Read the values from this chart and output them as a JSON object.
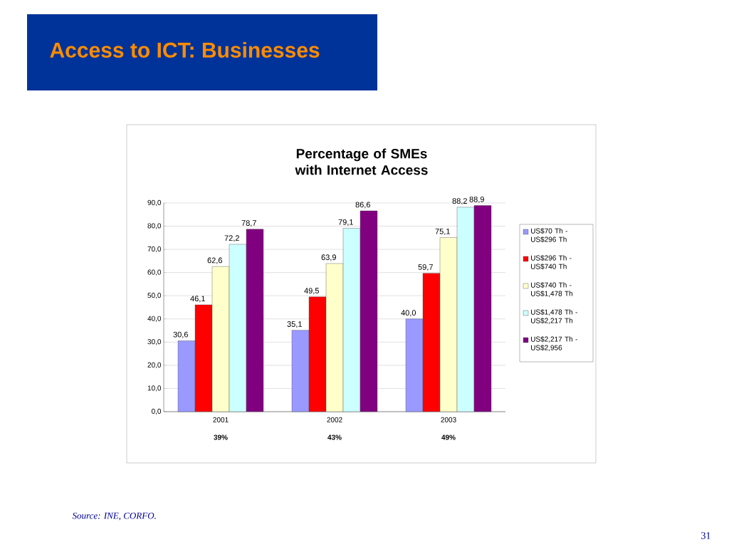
{
  "chart_data": {
    "type": "bar",
    "title": "Access to ICT: Businesses",
    "subtitle": "Percentage of SMEs with Internet Access",
    "categories": [
      "2001",
      "2002",
      "2003"
    ],
    "series": [
      {
        "name": "US$70 Th - US$296 Th",
        "color": "#9999ff",
        "values": [
          30.6,
          35.1,
          40.0
        ],
        "value_labels": [
          "30,6",
          "35,1",
          "40,0"
        ]
      },
      {
        "name": "US$296 Th - US$740 Th",
        "color": "#ff0000",
        "values": [
          46.1,
          49.5,
          59.7
        ],
        "value_labels": [
          "46,1",
          "49,5",
          "59,7"
        ]
      },
      {
        "name": "US$740 Th - US$1,478 Th",
        "color": "#ffffcc",
        "values": [
          62.6,
          63.9,
          75.1
        ],
        "value_labels": [
          "62,6",
          "63,9",
          "75,1"
        ]
      },
      {
        "name": "US$1,478 Th - US$2,217 Th",
        "color": "#ccffff",
        "values": [
          72.2,
          79.1,
          88.2
        ],
        "value_labels": [
          "72,2",
          "79,1",
          "88,2"
        ]
      },
      {
        "name": "US$2,217 Th - US$2,956",
        "color": "#800080",
        "values": [
          78.7,
          86.6,
          88.9
        ],
        "value_labels": [
          "78,7",
          "86,6",
          "88,9"
        ]
      }
    ],
    "ylim": [
      0,
      90
    ],
    "yticks": [
      {
        "value": 0,
        "label": "0,0"
      },
      {
        "value": 10,
        "label": "10,0"
      },
      {
        "value": 20,
        "label": "20,0"
      },
      {
        "value": 30,
        "label": "30,0"
      },
      {
        "value": 40,
        "label": "40,0"
      },
      {
        "value": 50,
        "label": "50,0"
      },
      {
        "value": 60,
        "label": "60,0"
      },
      {
        "value": 70,
        "label": "70,0"
      },
      {
        "value": 80,
        "label": "80,0"
      },
      {
        "value": 90,
        "label": "90,0"
      }
    ],
    "grid": "y",
    "legend": "right",
    "annotations": [
      "39%",
      "43%",
      "49%",
      "Source: INE, CORFO.",
      "31"
    ]
  }
}
